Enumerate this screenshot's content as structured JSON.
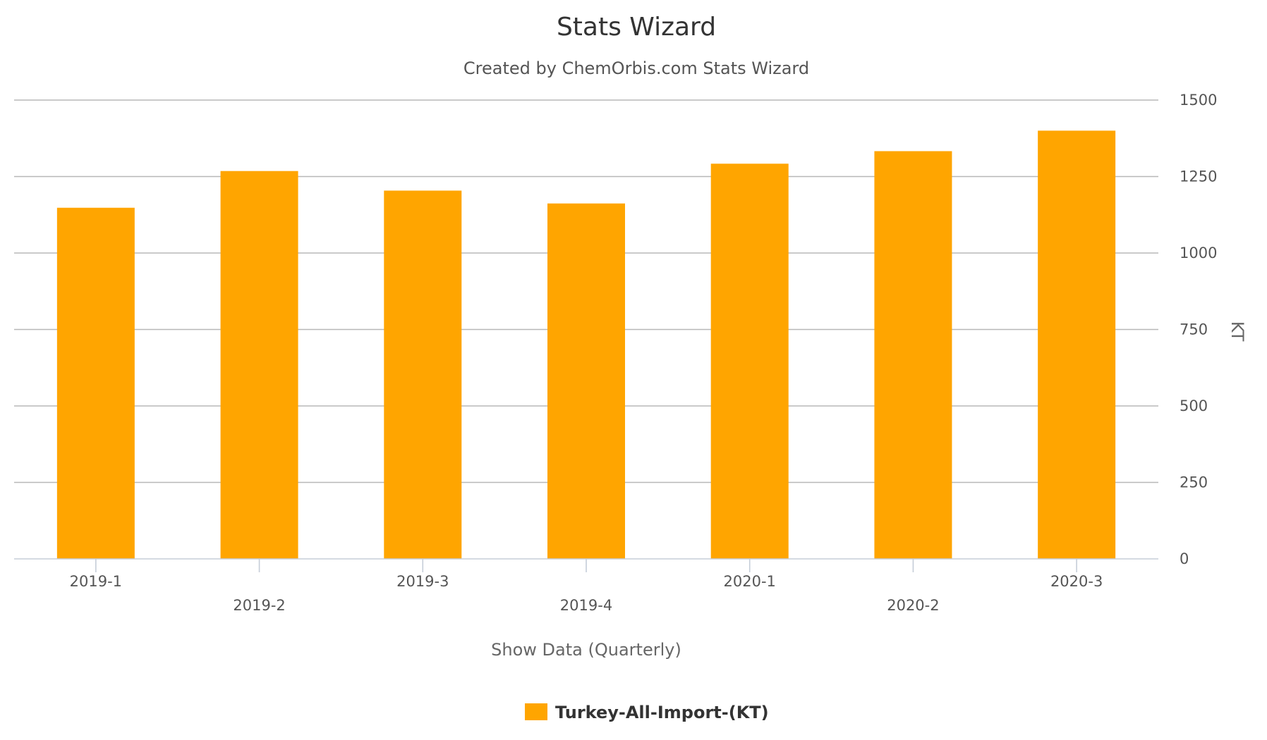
{
  "chart_data": {
    "type": "bar",
    "title": "Stats Wizard",
    "subtitle": "Created by ChemOrbis.com Stats Wizard",
    "xlabel": "Show Data (Quarterly)",
    "ylabel": "KT",
    "categories": [
      "2019-1",
      "2019-2",
      "2019-3",
      "2019-4",
      "2020-1",
      "2020-2",
      "2020-3"
    ],
    "series": [
      {
        "name": "Turkey-All-Import-(KT)",
        "color": "#FFA500",
        "values": [
          1148,
          1268,
          1204,
          1162,
          1292,
          1333,
          1400
        ]
      }
    ],
    "ylim": [
      0,
      1500
    ],
    "yticks": [
      0,
      250,
      500,
      750,
      1000,
      1250,
      1500
    ],
    "y_axis_side": "right",
    "grid": true,
    "legend_position": "bottom-center"
  }
}
